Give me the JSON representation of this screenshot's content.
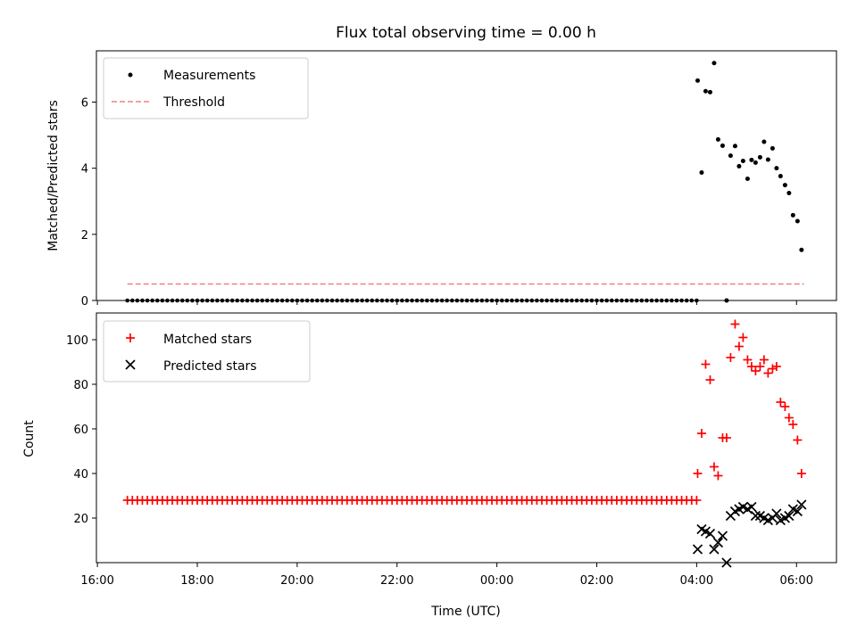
{
  "chart_data": [
    {
      "type": "scatter",
      "panel": "top",
      "title": "Flux total observing time = 0.00 h",
      "xlabel": "",
      "ylabel": "Matched/Predicted stars",
      "x_unit": "hours since 00:00 UTC",
      "xlim": [
        -8.02,
        6.8
      ],
      "ylim": [
        0,
        7.55
      ],
      "yticks": [
        0,
        2,
        4,
        6
      ],
      "ytick_labels": [
        "0",
        "2",
        "4",
        "6"
      ],
      "legend": {
        "placement": "top-left",
        "entries": [
          {
            "label": "Measurements",
            "marker": "dot",
            "color": "#000000"
          },
          {
            "label": "Threshold",
            "marker": "dashed-line",
            "color": "#f08080"
          }
        ]
      },
      "threshold": {
        "name": "Threshold",
        "y": 0.5,
        "x_start": -7.4,
        "x_end": 6.15,
        "color": "#f08080"
      },
      "baseline_series": {
        "name": "Measurements",
        "x_start": -7.4,
        "x_end": 3.95,
        "x_step": 0.1,
        "y": 0
      },
      "series": [
        {
          "name": "Measurements",
          "color": "#000000",
          "x": [
            4.02,
            4.1,
            4.18,
            4.27,
            4.35,
            4.43,
            4.52,
            4.6,
            4.68,
            4.77,
            4.85,
            4.93,
            5.02,
            5.1,
            5.18,
            5.27,
            5.35,
            5.43,
            5.52,
            5.6,
            5.68,
            5.77,
            5.85,
            5.93,
            6.02,
            6.1
          ],
          "y": [
            6.65,
            3.87,
            6.33,
            6.3,
            7.18,
            4.87,
            4.68,
            0.0,
            4.38,
            4.67,
            4.06,
            4.22,
            3.68,
            4.25,
            4.17,
            4.33,
            4.8,
            4.26,
            4.6,
            4.0,
            3.76,
            3.49,
            3.25,
            2.58,
            2.4,
            1.53
          ]
        }
      ]
    },
    {
      "type": "scatter",
      "panel": "bottom",
      "title": "",
      "xlabel": "Time (UTC)",
      "ylabel": "Count",
      "x_unit": "hours since 00:00 UTC",
      "xlim": [
        -8.02,
        6.8
      ],
      "ylim": [
        0,
        112
      ],
      "xticks": [
        -8,
        -6,
        -4,
        -2,
        0,
        2,
        4,
        6
      ],
      "xtick_labels": [
        "16:00",
        "18:00",
        "20:00",
        "22:00",
        "00:00",
        "02:00",
        "04:00",
        "06:00"
      ],
      "yticks": [
        20,
        40,
        60,
        80,
        100
      ],
      "ytick_labels": [
        "20",
        "40",
        "60",
        "80",
        "100"
      ],
      "legend": {
        "placement": "top-left",
        "entries": [
          {
            "label": "Matched stars",
            "marker": "plus",
            "color": "#ff0000"
          },
          {
            "label": "Predicted stars",
            "marker": "x",
            "color": "#000000"
          }
        ]
      },
      "baseline_series": {
        "name": "Matched stars",
        "x_start": -7.4,
        "x_end": 3.95,
        "x_step": 0.1,
        "y": 28
      },
      "series": [
        {
          "name": "Matched stars",
          "marker": "plus",
          "color": "#ff0000",
          "x": [
            4.02,
            4.1,
            4.18,
            4.27,
            4.35,
            4.43,
            4.52,
            4.6,
            4.68,
            4.77,
            4.85,
            4.93,
            5.02,
            5.1,
            5.18,
            5.27,
            5.35,
            5.43,
            5.52,
            5.6,
            5.68,
            5.77,
            5.85,
            5.93,
            6.02,
            6.1
          ],
          "y": [
            40,
            58,
            89,
            82,
            43,
            39,
            56,
            56,
            92,
            107,
            97,
            101,
            91,
            88,
            86,
            88,
            91,
            85,
            87,
            88,
            72,
            70,
            65,
            62,
            55,
            40
          ]
        },
        {
          "name": "Predicted stars",
          "marker": "x",
          "color": "#000000",
          "x": [
            4.02,
            4.1,
            4.18,
            4.27,
            4.35,
            4.43,
            4.52,
            4.6,
            4.68,
            4.77,
            4.85,
            4.93,
            5.02,
            5.1,
            5.18,
            5.27,
            5.35,
            5.43,
            5.52,
            5.6,
            5.68,
            5.77,
            5.85,
            5.93,
            6.02,
            6.1
          ],
          "y": [
            6,
            15,
            14,
            13,
            6,
            9,
            12,
            0,
            21,
            23,
            24,
            25,
            24,
            25,
            21,
            21,
            20,
            19,
            20,
            22,
            19,
            20,
            21,
            24,
            23,
            26
          ]
        }
      ]
    }
  ]
}
